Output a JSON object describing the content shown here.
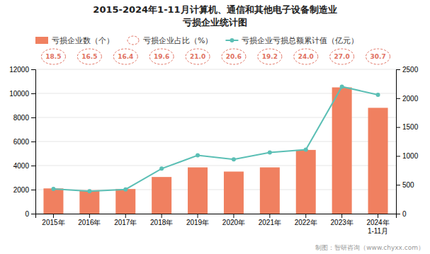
{
  "chart_data": {
    "type": "bar",
    "title": "2015-2024年1-11月计算机、通信和其他电子设备制造业",
    "subtitle": "亏损企业统计图",
    "categories": [
      "2015年",
      "2016年",
      "2017年",
      "2018年",
      "2019年",
      "2020年",
      "2021年",
      "2022年",
      "2023年",
      "2024年\n1-11月"
    ],
    "series": [
      {
        "name": "亏损企业数（个）",
        "type": "bar",
        "color": "#F08060",
        "values": [
          2100,
          1950,
          2050,
          3050,
          3850,
          3500,
          3850,
          5300,
          10500,
          8800
        ]
      },
      {
        "name": "亏损企业占比（%）",
        "type": "text",
        "color": "#E07060",
        "marker": "circle",
        "line_style": "dashed",
        "data_labels": true,
        "values": [
          18.5,
          16.5,
          16.4,
          19.6,
          21.0,
          20.6,
          19.2,
          24.0,
          27.0,
          30.7
        ],
        "value_labels": [
          "18.5",
          "16.5",
          "16.4",
          "19.6",
          "21.0",
          "20.6",
          "19.2",
          "24.0",
          "27.0",
          "30.7"
        ]
      },
      {
        "name": "亏损企业亏损总额累计值（亿元）",
        "type": "line",
        "color": "#5BBFB5",
        "marker": "circle",
        "axis": "y2",
        "values": [
          430,
          390,
          420,
          780,
          1010,
          940,
          1060,
          1110,
          2200,
          2060
        ]
      }
    ],
    "ylim": [
      0,
      12000
    ],
    "yticks": [
      0,
      2000,
      4000,
      6000,
      8000,
      10000,
      12000
    ],
    "y2lim": [
      0,
      2500
    ],
    "y2ticks": [
      0,
      500,
      1000,
      1500,
      2000,
      2500
    ],
    "grid": true,
    "legend": "upper left",
    "annotations": [
      "制图：智研咨询（www.chyxx.com）"
    ]
  }
}
